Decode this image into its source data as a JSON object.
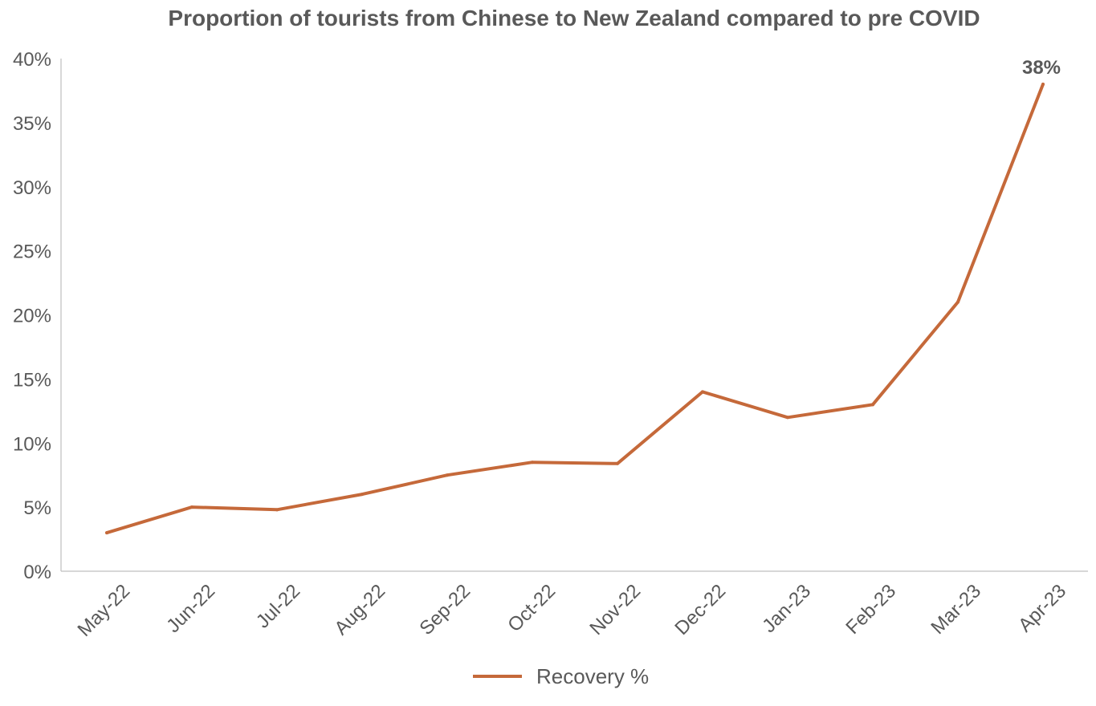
{
  "chart_data": {
    "type": "line",
    "title": "Proportion of tourists from Chinese to New Zealand compared to pre COVID",
    "xlabel": "",
    "ylabel": "",
    "categories": [
      "May-22",
      "Jun-22",
      "Jul-22",
      "Aug-22",
      "Sep-22",
      "Oct-22",
      "Nov-22",
      "Dec-22",
      "Jan-23",
      "Feb-23",
      "Mar-23",
      "Apr-23"
    ],
    "y_ticks": [
      "0%",
      "5%",
      "10%",
      "15%",
      "20%",
      "25%",
      "30%",
      "35%",
      "40%"
    ],
    "ylim": [
      0,
      40
    ],
    "grid": false,
    "legend": "bottom",
    "series": [
      {
        "name": "Recovery %",
        "color": "#C5693A",
        "values": [
          3.0,
          5.0,
          4.8,
          6.0,
          7.5,
          8.5,
          8.4,
          14.0,
          12.0,
          13.0,
          21.0,
          38.0
        ]
      }
    ],
    "data_labels": [
      {
        "index": 11,
        "text": "38%"
      }
    ]
  }
}
